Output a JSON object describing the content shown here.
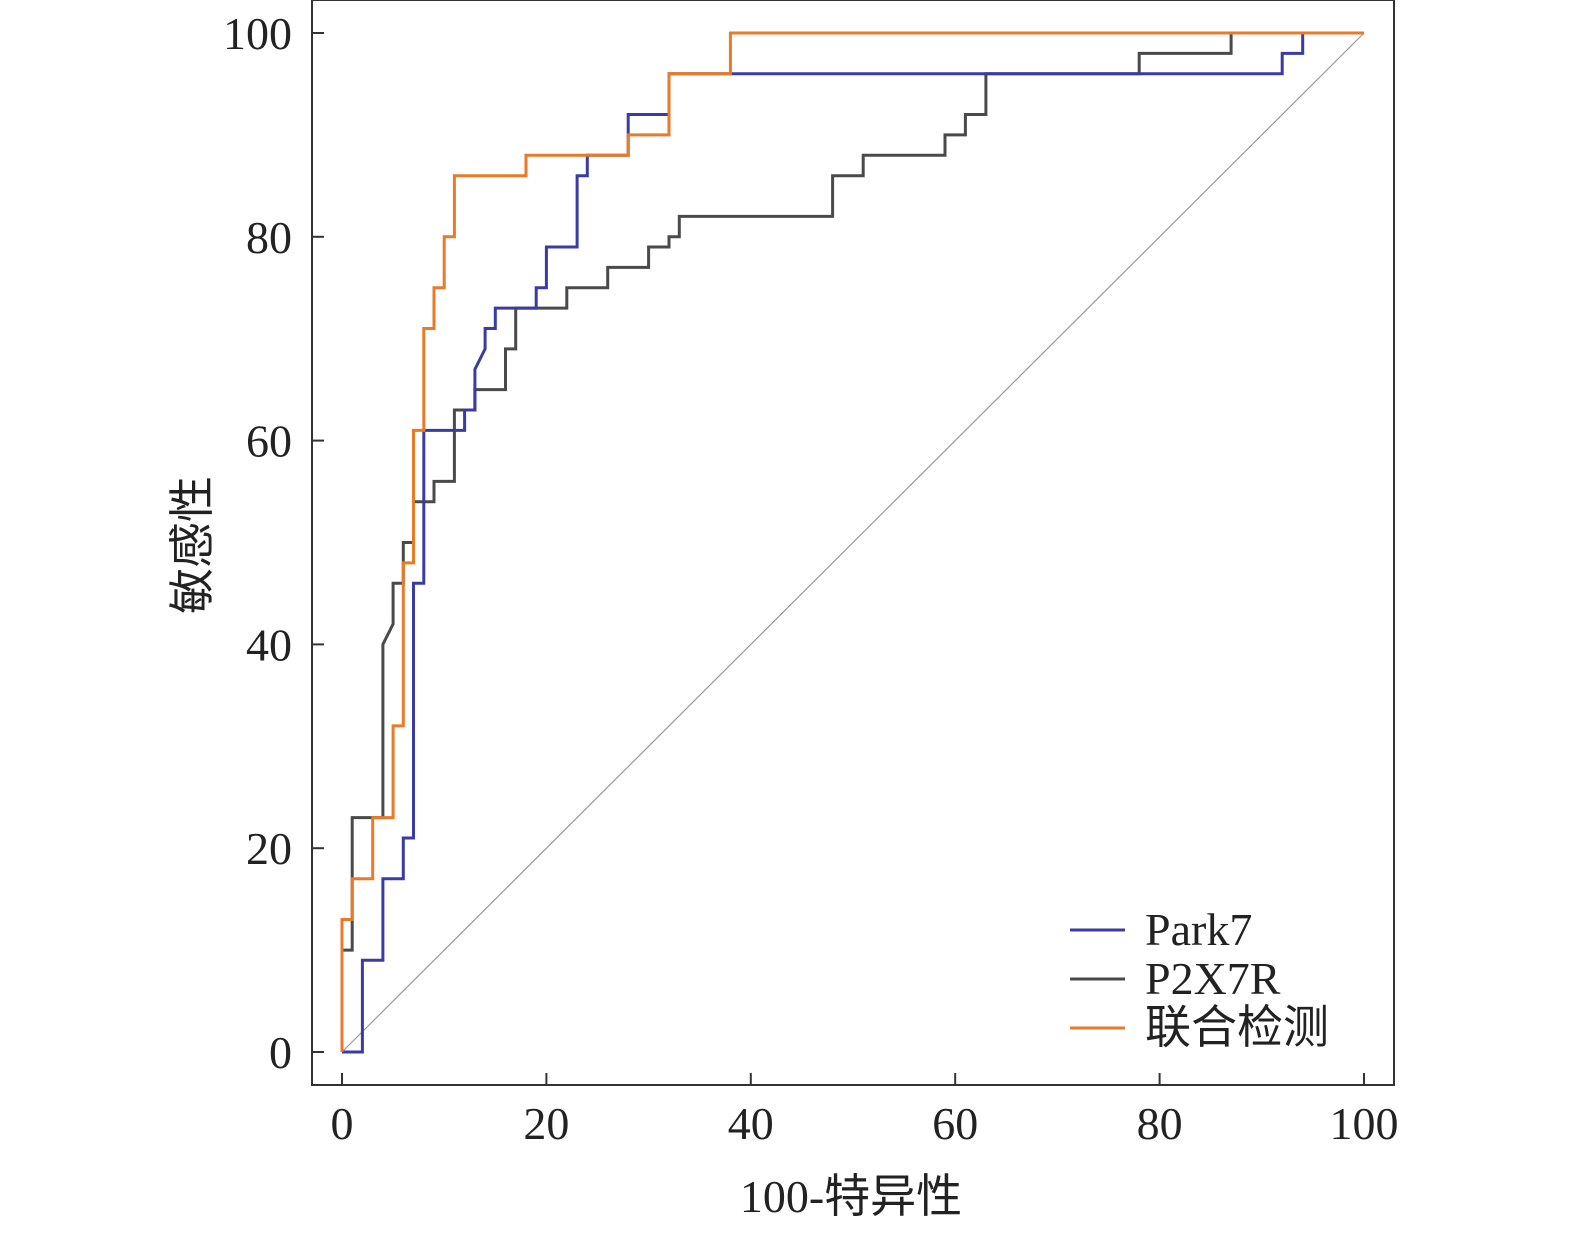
{
  "chart_data": {
    "type": "line",
    "title": "",
    "xlabel": "100-特异性",
    "ylabel": "敏感性",
    "xlim": [
      0,
      100
    ],
    "ylim": [
      0,
      100
    ],
    "xticks": [
      0,
      20,
      40,
      60,
      80,
      100
    ],
    "yticks": [
      0,
      20,
      40,
      60,
      80,
      100
    ],
    "xtick_labels": [
      "0",
      "20",
      "40",
      "60",
      "80",
      "100"
    ],
    "ytick_labels": [
      "0",
      "20",
      "40",
      "60",
      "80",
      "100"
    ],
    "grid": false,
    "legend_position": "bottom-right",
    "reference_line": {
      "name": "reference-diagonal",
      "color": "#9a9a9a",
      "points": [
        [
          0,
          0
        ],
        [
          100,
          100
        ]
      ]
    },
    "series": [
      {
        "name": "Park7",
        "color": "#3b3ba6",
        "points": [
          [
            0,
            0
          ],
          [
            2,
            0
          ],
          [
            2,
            9
          ],
          [
            4,
            9
          ],
          [
            4,
            17
          ],
          [
            6,
            17
          ],
          [
            6,
            21
          ],
          [
            7,
            21
          ],
          [
            7,
            46
          ],
          [
            8,
            46
          ],
          [
            8,
            61
          ],
          [
            12,
            61
          ],
          [
            12,
            63
          ],
          [
            13,
            63
          ],
          [
            13,
            67
          ],
          [
            14,
            69
          ],
          [
            14,
            71
          ],
          [
            15,
            71
          ],
          [
            15,
            73
          ],
          [
            19,
            73
          ],
          [
            19,
            75
          ],
          [
            20,
            75
          ],
          [
            20,
            79
          ],
          [
            23,
            79
          ],
          [
            23,
            86
          ],
          [
            24,
            86
          ],
          [
            24,
            88
          ],
          [
            28,
            88
          ],
          [
            28,
            92
          ],
          [
            32,
            92
          ],
          [
            32,
            96
          ],
          [
            92,
            96
          ],
          [
            92,
            98
          ],
          [
            94,
            98
          ],
          [
            94,
            100
          ],
          [
            100,
            100
          ]
        ]
      },
      {
        "name": "P2X7R",
        "color": "#4a4a4a",
        "points": [
          [
            0,
            0
          ],
          [
            0,
            10
          ],
          [
            1,
            10
          ],
          [
            1,
            23
          ],
          [
            4,
            23
          ],
          [
            4,
            40
          ],
          [
            5,
            42
          ],
          [
            5,
            46
          ],
          [
            6,
            46
          ],
          [
            6,
            50
          ],
          [
            7,
            50
          ],
          [
            7,
            54
          ],
          [
            9,
            54
          ],
          [
            9,
            56
          ],
          [
            11,
            56
          ],
          [
            11,
            63
          ],
          [
            13,
            63
          ],
          [
            13,
            65
          ],
          [
            16,
            65
          ],
          [
            16,
            69
          ],
          [
            17,
            69
          ],
          [
            17,
            73
          ],
          [
            22,
            73
          ],
          [
            22,
            75
          ],
          [
            26,
            75
          ],
          [
            26,
            77
          ],
          [
            30,
            77
          ],
          [
            30,
            79
          ],
          [
            32,
            79
          ],
          [
            32,
            80
          ],
          [
            33,
            80
          ],
          [
            33,
            82
          ],
          [
            48,
            82
          ],
          [
            48,
            86
          ],
          [
            51,
            86
          ],
          [
            51,
            88
          ],
          [
            59,
            88
          ],
          [
            59,
            90
          ],
          [
            61,
            90
          ],
          [
            61,
            92
          ],
          [
            63,
            92
          ],
          [
            63,
            96
          ],
          [
            78,
            96
          ],
          [
            78,
            98
          ],
          [
            87,
            98
          ],
          [
            87,
            100
          ],
          [
            100,
            100
          ]
        ]
      },
      {
        "name": "联合检测",
        "color": "#e87a28",
        "points": [
          [
            0,
            0
          ],
          [
            0,
            13
          ],
          [
            1,
            13
          ],
          [
            1,
            17
          ],
          [
            3,
            17
          ],
          [
            3,
            23
          ],
          [
            5,
            23
          ],
          [
            5,
            32
          ],
          [
            6,
            32
          ],
          [
            6,
            48
          ],
          [
            7,
            48
          ],
          [
            7,
            61
          ],
          [
            8,
            61
          ],
          [
            8,
            71
          ],
          [
            9,
            71
          ],
          [
            9,
            75
          ],
          [
            10,
            75
          ],
          [
            10,
            80
          ],
          [
            11,
            80
          ],
          [
            11,
            86
          ],
          [
            18,
            86
          ],
          [
            18,
            88
          ],
          [
            28,
            88
          ],
          [
            28,
            90
          ],
          [
            32,
            90
          ],
          [
            32,
            96
          ],
          [
            38,
            96
          ],
          [
            38,
            100
          ],
          [
            100,
            100
          ]
        ]
      }
    ]
  }
}
